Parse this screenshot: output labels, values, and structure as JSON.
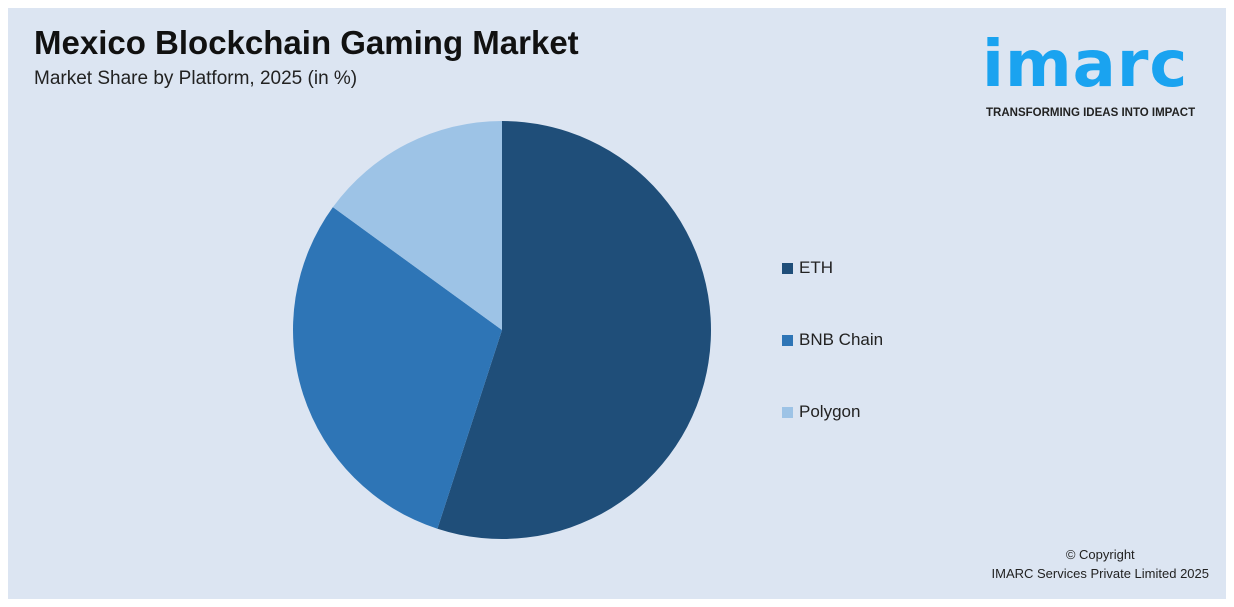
{
  "title": "Mexico Blockchain Gaming Market",
  "subtitle": "Market Share by Platform, 2025 (in %)",
  "logo": {
    "word": "imarc",
    "tagline": "TRANSFORMING IDEAS INTO IMPACT",
    "color": "#1aa3f0"
  },
  "copyright": {
    "line1": "© Copyright",
    "line2": "IMARC Services Private Limited 2025"
  },
  "chart_data": {
    "type": "pie",
    "title": "Mexico Blockchain Gaming Market",
    "subtitle": "Market Share by Platform, 2025 (in %)",
    "categories": [
      "ETH",
      "BNB Chain",
      "Polygon"
    ],
    "values": [
      55,
      30,
      15
    ],
    "colors": [
      "#1f4e79",
      "#2e75b6",
      "#9dc3e6"
    ],
    "legend_position": "right",
    "start_angle": "top, clockwise"
  }
}
